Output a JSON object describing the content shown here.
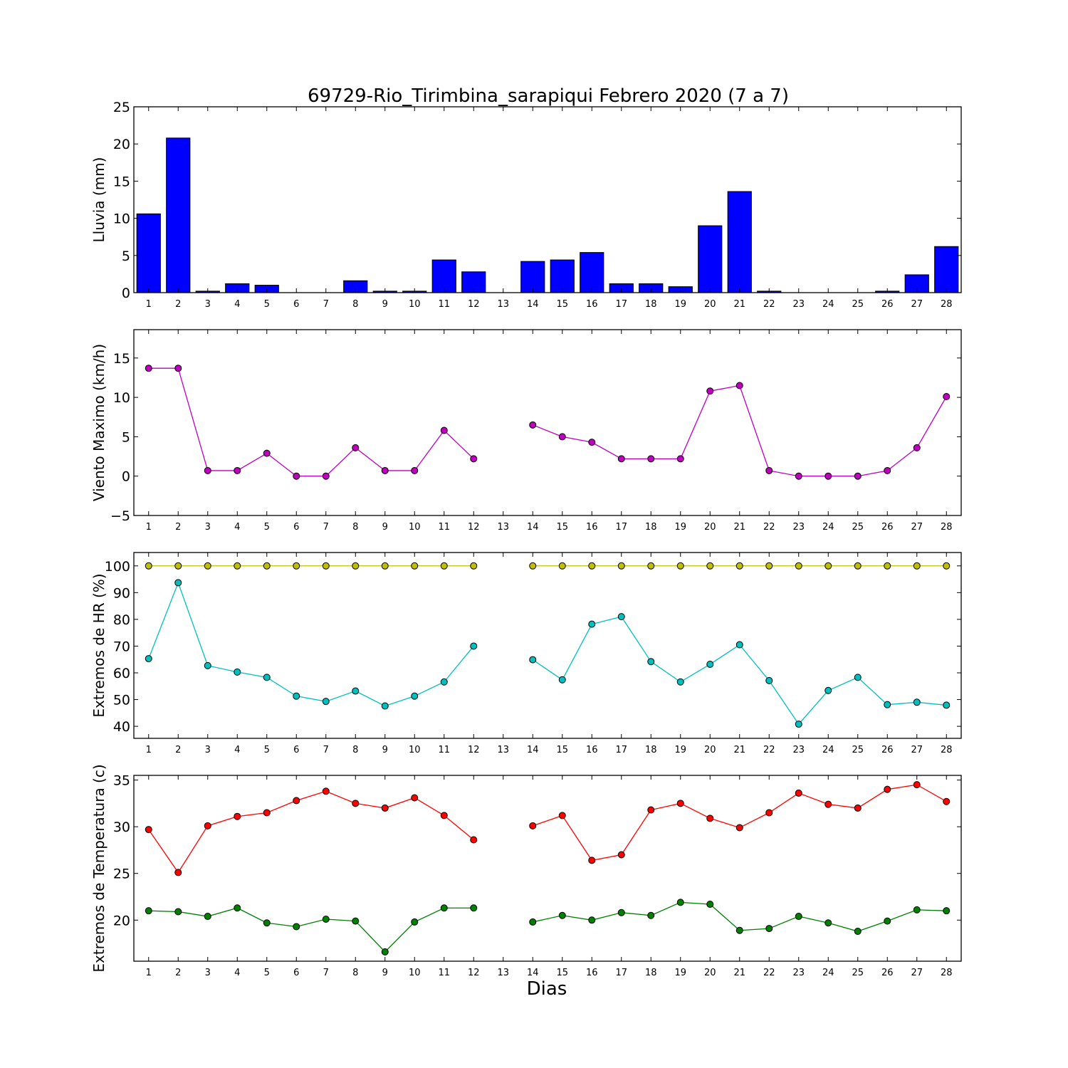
{
  "title": "69729-Rio_Tirimbina_sarapiqui Febrero 2020  (7 a 7)",
  "xlabel": "Dias",
  "chart_data": [
    {
      "id": "lluvia",
      "type": "bar",
      "ylabel": "Lluvia (mm)",
      "ylim": [
        0,
        25
      ],
      "yticks": [
        0,
        5,
        10,
        15,
        20,
        25
      ],
      "xlim": [
        0.5,
        28.5
      ],
      "xticks": [
        1,
        2,
        3,
        4,
        5,
        6,
        7,
        8,
        9,
        10,
        11,
        12,
        13,
        14,
        15,
        16,
        17,
        18,
        19,
        20,
        21,
        22,
        23,
        24,
        25,
        26,
        27,
        28
      ],
      "grid": false,
      "series": [
        {
          "color": "#0000ff",
          "x": [
            1,
            2,
            3,
            4,
            5,
            6,
            7,
            8,
            9,
            10,
            11,
            12,
            13,
            14,
            15,
            16,
            17,
            18,
            19,
            20,
            21,
            22,
            23,
            24,
            25,
            26,
            27,
            28
          ],
          "values": [
            10.6,
            20.8,
            0.2,
            1.2,
            1.0,
            0,
            0,
            1.6,
            0.2,
            0.2,
            4.4,
            2.8,
            0,
            4.2,
            4.4,
            5.4,
            1.2,
            1.2,
            0.8,
            9.0,
            13.6,
            0.2,
            0,
            0,
            0,
            0.2,
            2.4,
            6.2
          ]
        }
      ]
    },
    {
      "id": "viento",
      "type": "line",
      "ylabel": "Viento Maximo (km/h)",
      "ylim": [
        -5,
        18.6
      ],
      "yticks": [
        -5,
        0,
        5,
        10,
        15
      ],
      "xlim": [
        0.5,
        28.5
      ],
      "xticks": [
        1,
        2,
        3,
        4,
        5,
        6,
        7,
        8,
        9,
        10,
        11,
        12,
        13,
        14,
        15,
        16,
        17,
        18,
        19,
        20,
        21,
        22,
        23,
        24,
        25,
        26,
        27,
        28
      ],
      "grid": false,
      "series": [
        {
          "color": "#bf00bf",
          "x": [
            1,
            2,
            3,
            4,
            5,
            6,
            7,
            8,
            9,
            10,
            11,
            12,
            13,
            14,
            15,
            16,
            17,
            18,
            19,
            20,
            21,
            22,
            23,
            24,
            25,
            26,
            27,
            28
          ],
          "values": [
            13.7,
            13.7,
            0.7,
            0.7,
            2.9,
            0,
            0,
            3.6,
            0.7,
            0.7,
            5.8,
            2.2,
            null,
            6.5,
            5.0,
            4.3,
            2.2,
            2.2,
            2.2,
            10.8,
            11.5,
            0.7,
            0,
            0,
            0,
            0.7,
            3.6,
            10.1
          ]
        }
      ]
    },
    {
      "id": "hr",
      "type": "line",
      "ylabel": "Extremos de HR (%)",
      "ylim": [
        35.5,
        105
      ],
      "yticks": [
        40,
        50,
        60,
        70,
        80,
        90,
        100
      ],
      "xlim": [
        0.5,
        28.5
      ],
      "xticks": [
        1,
        2,
        3,
        4,
        5,
        6,
        7,
        8,
        9,
        10,
        11,
        12,
        13,
        14,
        15,
        16,
        17,
        18,
        19,
        20,
        21,
        22,
        23,
        24,
        25,
        26,
        27,
        28
      ],
      "grid": false,
      "series": [
        {
          "color": "#bfbf00",
          "x": [
            1,
            2,
            3,
            4,
            5,
            6,
            7,
            8,
            9,
            10,
            11,
            12,
            13,
            14,
            15,
            16,
            17,
            18,
            19,
            20,
            21,
            22,
            23,
            24,
            25,
            26,
            27,
            28
          ],
          "values": [
            100,
            100,
            100,
            100,
            100,
            100,
            100,
            100,
            100,
            100,
            100,
            100,
            null,
            100,
            100,
            100,
            100,
            100,
            100,
            100,
            100,
            100,
            100,
            100,
            100,
            100,
            100,
            100
          ]
        },
        {
          "color": "#00bfbf",
          "x": [
            1,
            2,
            3,
            4,
            5,
            6,
            7,
            8,
            9,
            10,
            11,
            12,
            13,
            14,
            15,
            16,
            17,
            18,
            19,
            20,
            21,
            22,
            23,
            24,
            25,
            26,
            27,
            28
          ],
          "values": [
            65.3,
            93.7,
            62.7,
            60.3,
            58.3,
            51.3,
            49.3,
            53.2,
            47.6,
            51.3,
            56.6,
            70.0,
            null,
            64.9,
            57.4,
            78.2,
            81.0,
            64.2,
            56.6,
            63.2,
            70.5,
            57.1,
            40.8,
            53.4,
            58.3,
            48.1,
            49.0,
            47.9
          ]
        }
      ]
    },
    {
      "id": "temperatura",
      "type": "line",
      "ylabel": "Extremos de Temperatura (c)",
      "ylim": [
        15.6,
        35.5
      ],
      "yticks": [
        20,
        25,
        30,
        35
      ],
      "xlim": [
        0.5,
        28.5
      ],
      "xticks": [
        1,
        2,
        3,
        4,
        5,
        6,
        7,
        8,
        9,
        10,
        11,
        12,
        13,
        14,
        15,
        16,
        17,
        18,
        19,
        20,
        21,
        22,
        23,
        24,
        25,
        26,
        27,
        28
      ],
      "grid": false,
      "series": [
        {
          "color": "#ff0000",
          "x": [
            1,
            2,
            3,
            4,
            5,
            6,
            7,
            8,
            9,
            10,
            11,
            12,
            13,
            14,
            15,
            16,
            17,
            18,
            19,
            20,
            21,
            22,
            23,
            24,
            25,
            26,
            27,
            28
          ],
          "values": [
            29.7,
            25.1,
            30.1,
            31.1,
            31.5,
            32.8,
            33.8,
            32.5,
            32.0,
            33.1,
            31.2,
            28.6,
            null,
            30.1,
            31.2,
            26.4,
            27.0,
            31.8,
            32.5,
            30.9,
            29.9,
            31.5,
            33.6,
            32.4,
            32.0,
            34.0,
            34.5,
            32.7
          ]
        },
        {
          "color": "#008000",
          "x": [
            1,
            2,
            3,
            4,
            5,
            6,
            7,
            8,
            9,
            10,
            11,
            12,
            13,
            14,
            15,
            16,
            17,
            18,
            19,
            20,
            21,
            22,
            23,
            24,
            25,
            26,
            27,
            28
          ],
          "values": [
            21.0,
            20.9,
            20.4,
            21.3,
            19.7,
            19.3,
            20.1,
            19.9,
            16.6,
            19.8,
            21.3,
            21.3,
            null,
            19.8,
            20.5,
            20.0,
            20.8,
            20.5,
            21.9,
            21.7,
            18.9,
            19.1,
            20.4,
            19.7,
            18.8,
            19.9,
            21.1,
            21.0
          ]
        }
      ]
    }
  ]
}
